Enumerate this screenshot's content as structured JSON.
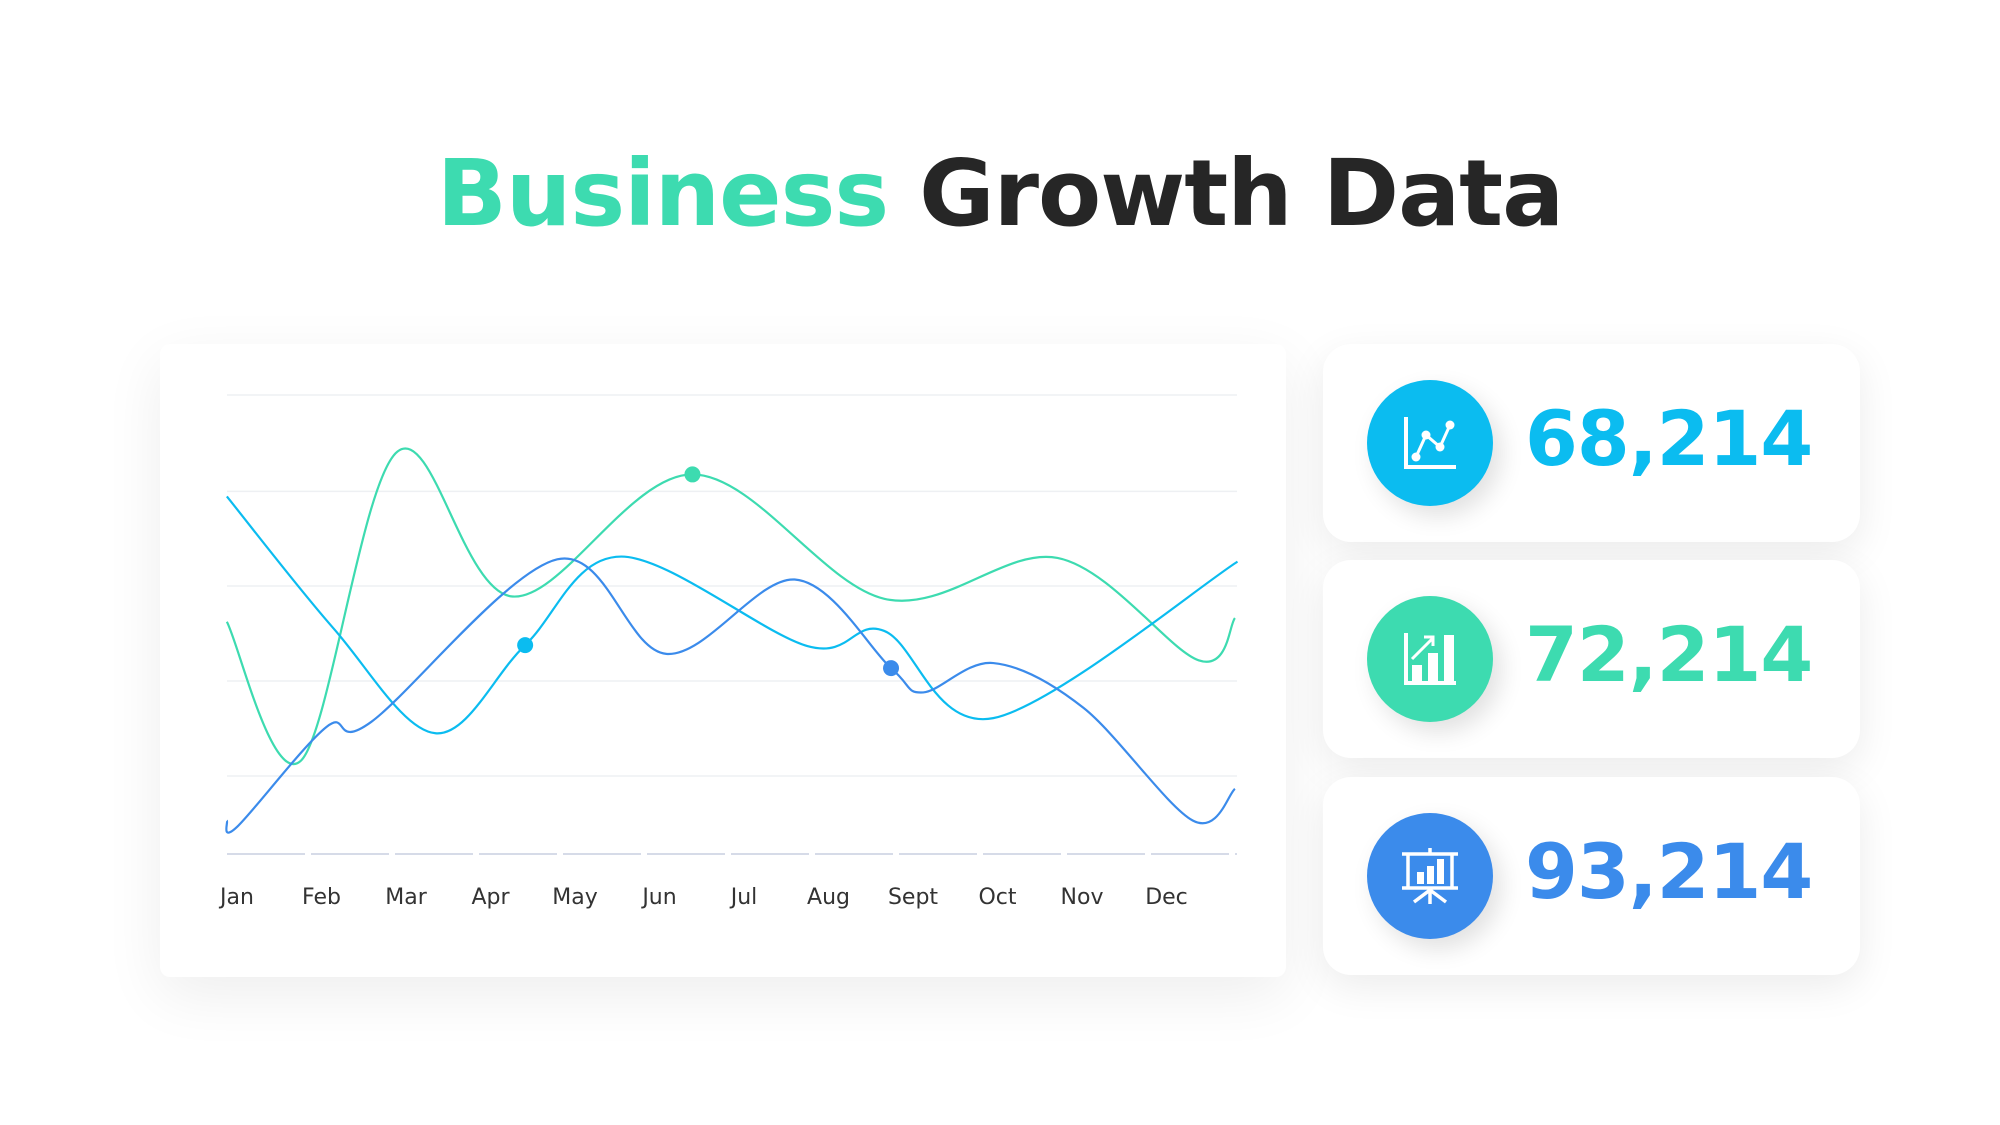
{
  "title": {
    "highlight": "Business",
    "rest": "Growth Data"
  },
  "colors": {
    "teal": "#3ddbb0",
    "cyan": "#0bbcf0",
    "blue": "#3b8beb",
    "title_dark": "#262626"
  },
  "chart_data": {
    "type": "line",
    "smooth": true,
    "categories": [
      "Jan",
      "Feb",
      "Mar",
      "Apr",
      "May",
      "Jun",
      "Jul",
      "Aug",
      "Sept",
      "Oct",
      "Nov",
      "Dec"
    ],
    "ylim": [
      0,
      100
    ],
    "grid": true,
    "legend": "none",
    "series": [
      {
        "color": "#3ddbb0",
        "points": [
          [
            -0.12,
            50.6
          ],
          [
            0.76,
            20.4
          ],
          [
            1.9,
            87.7
          ],
          [
            3.26,
            56.1
          ],
          [
            5.39,
            82.7
          ],
          [
            7.66,
            55.6
          ],
          [
            9.71,
            64.5
          ],
          [
            11.38,
            42.2
          ],
          [
            11.81,
            51.4
          ]
        ],
        "marker": [
          5.39,
          82.7
        ]
      },
      {
        "color": "#0bbcf0",
        "points": [
          [
            -0.12,
            77.9
          ],
          [
            1.14,
            49.2
          ],
          [
            2.35,
            26.3
          ],
          [
            3.41,
            45.5
          ],
          [
            4.55,
            64.8
          ],
          [
            6.75,
            45.3
          ],
          [
            7.66,
            48.6
          ],
          [
            8.95,
            29.6
          ],
          [
            11.84,
            63.7
          ]
        ],
        "marker": [
          3.41,
          45.5
        ]
      },
      {
        "color": "#3b8beb",
        "points": [
          [
            -0.12,
            7.3
          ],
          [
            0,
            5.9
          ],
          [
            1.06,
            27.7
          ],
          [
            1.59,
            28.8
          ],
          [
            3.79,
            64.2
          ],
          [
            5.08,
            43.6
          ],
          [
            6.6,
            59.8
          ],
          [
            7.74,
            40.5
          ],
          [
            8.12,
            35.2
          ],
          [
            8.95,
            41.6
          ],
          [
            10.02,
            31.8
          ],
          [
            11.31,
            7.3
          ],
          [
            11.81,
            14.2
          ]
        ],
        "marker": [
          7.74,
          40.5
        ]
      }
    ]
  },
  "stats": [
    {
      "value": "68,214",
      "icon": "line-chart-icon",
      "color": "#0bbcf0"
    },
    {
      "value": "72,214",
      "icon": "bar-chart-growth-icon",
      "color": "#3ddbb0"
    },
    {
      "value": "93,214",
      "icon": "presentation-board-icon",
      "color": "#3b8beb"
    }
  ]
}
